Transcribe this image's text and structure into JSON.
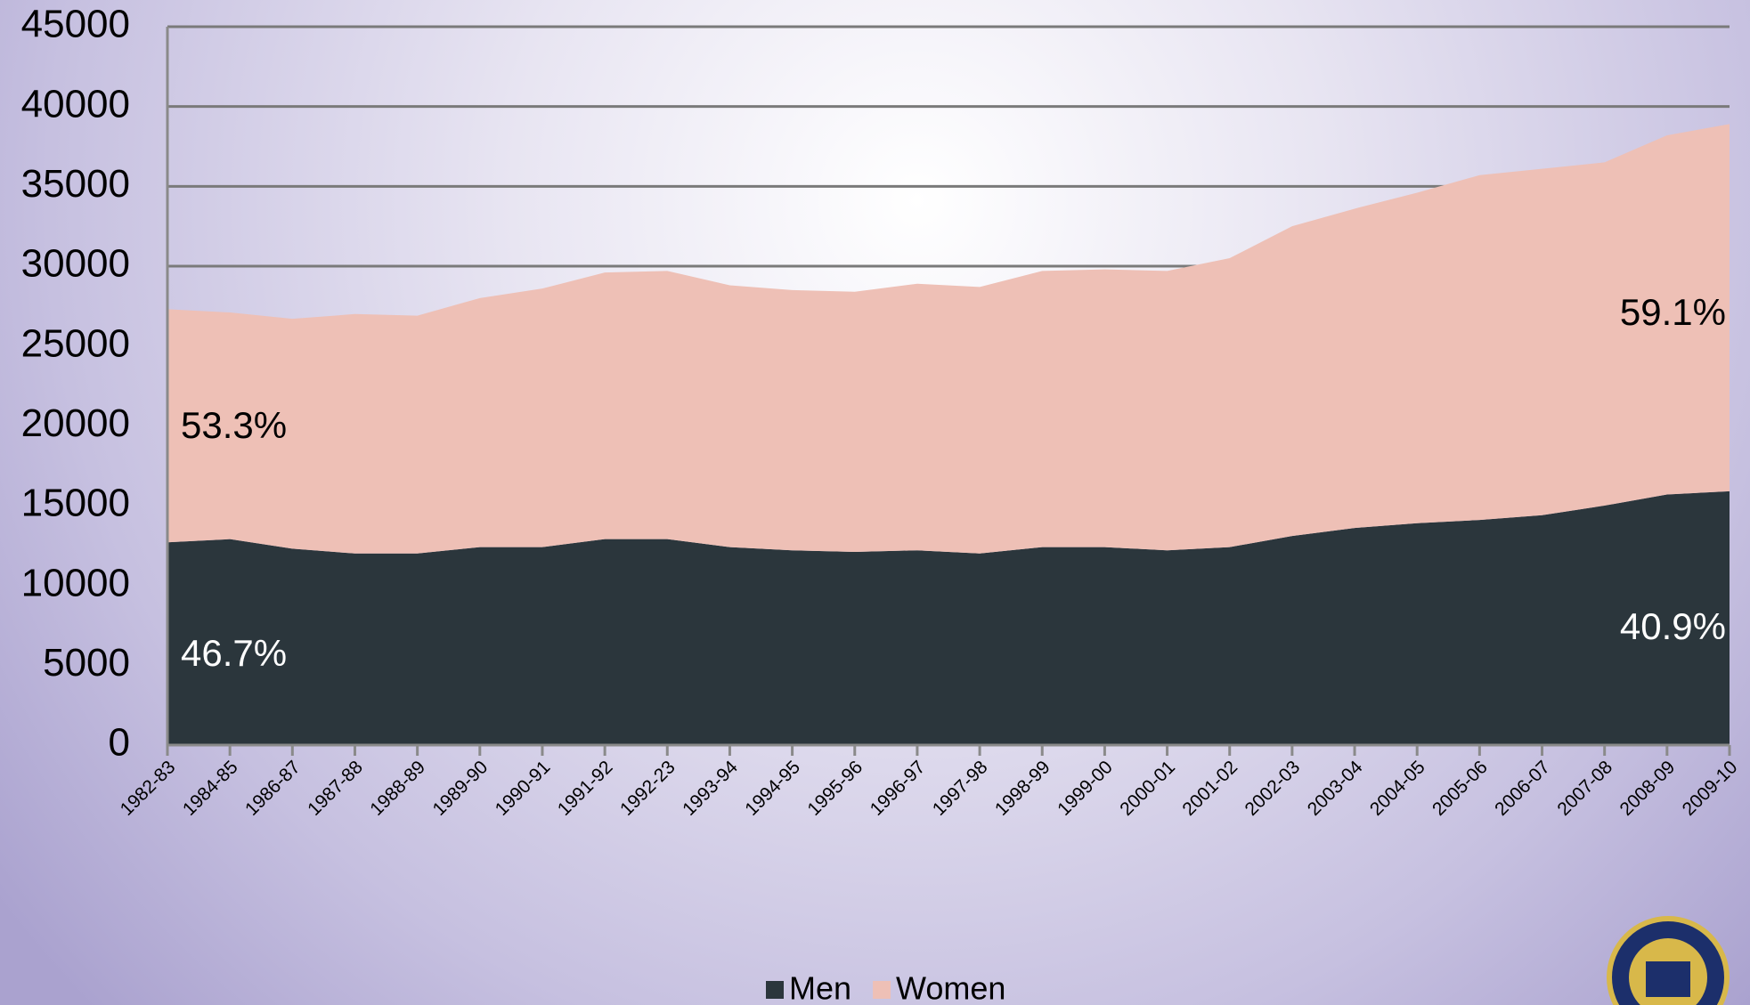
{
  "chart_data": {
    "type": "stacked_area",
    "categories": [
      "1982-83",
      "1984-85",
      "1986-87",
      "1987-88",
      "1988-89",
      "1989-90",
      "1990-91",
      "1991-92",
      "1992-23",
      "1993-94",
      "1994-95",
      "1995-96",
      "1996-97",
      "1997-98",
      "1998-99",
      "1999-00",
      "2000-01",
      "2001-02",
      "2002-03",
      "2003-04",
      "2004-05",
      "2005-06",
      "2006-07",
      "2007-08",
      "2008-09",
      "2009-10"
    ],
    "series": [
      {
        "name": "Men",
        "color": "#2b363c",
        "values": [
          12700,
          12900,
          12300,
          12000,
          12000,
          12400,
          12400,
          12900,
          12900,
          12400,
          12200,
          12100,
          12200,
          12000,
          12400,
          12400,
          12200,
          12400,
          13100,
          13600,
          13900,
          14100,
          14400,
          15000,
          15700,
          15900
        ]
      },
      {
        "name": "Women",
        "color": "#eec0b6",
        "values": [
          14600,
          14200,
          14400,
          15000,
          14900,
          15600,
          16200,
          16700,
          16800,
          16400,
          16300,
          16300,
          16700,
          16700,
          17300,
          17400,
          17500,
          18100,
          19400,
          20000,
          20700,
          21600,
          21700,
          21500,
          22500,
          23000
        ]
      }
    ],
    "annotations": [
      "53.3%",
      "46.7%",
      "59.1%",
      "40.9%"
    ],
    "ylim": [
      0,
      45000
    ],
    "yticks": [
      0,
      5000,
      10000,
      15000,
      20000,
      25000,
      30000,
      35000,
      40000,
      45000
    ],
    "grid": true,
    "legend": "bottom"
  }
}
